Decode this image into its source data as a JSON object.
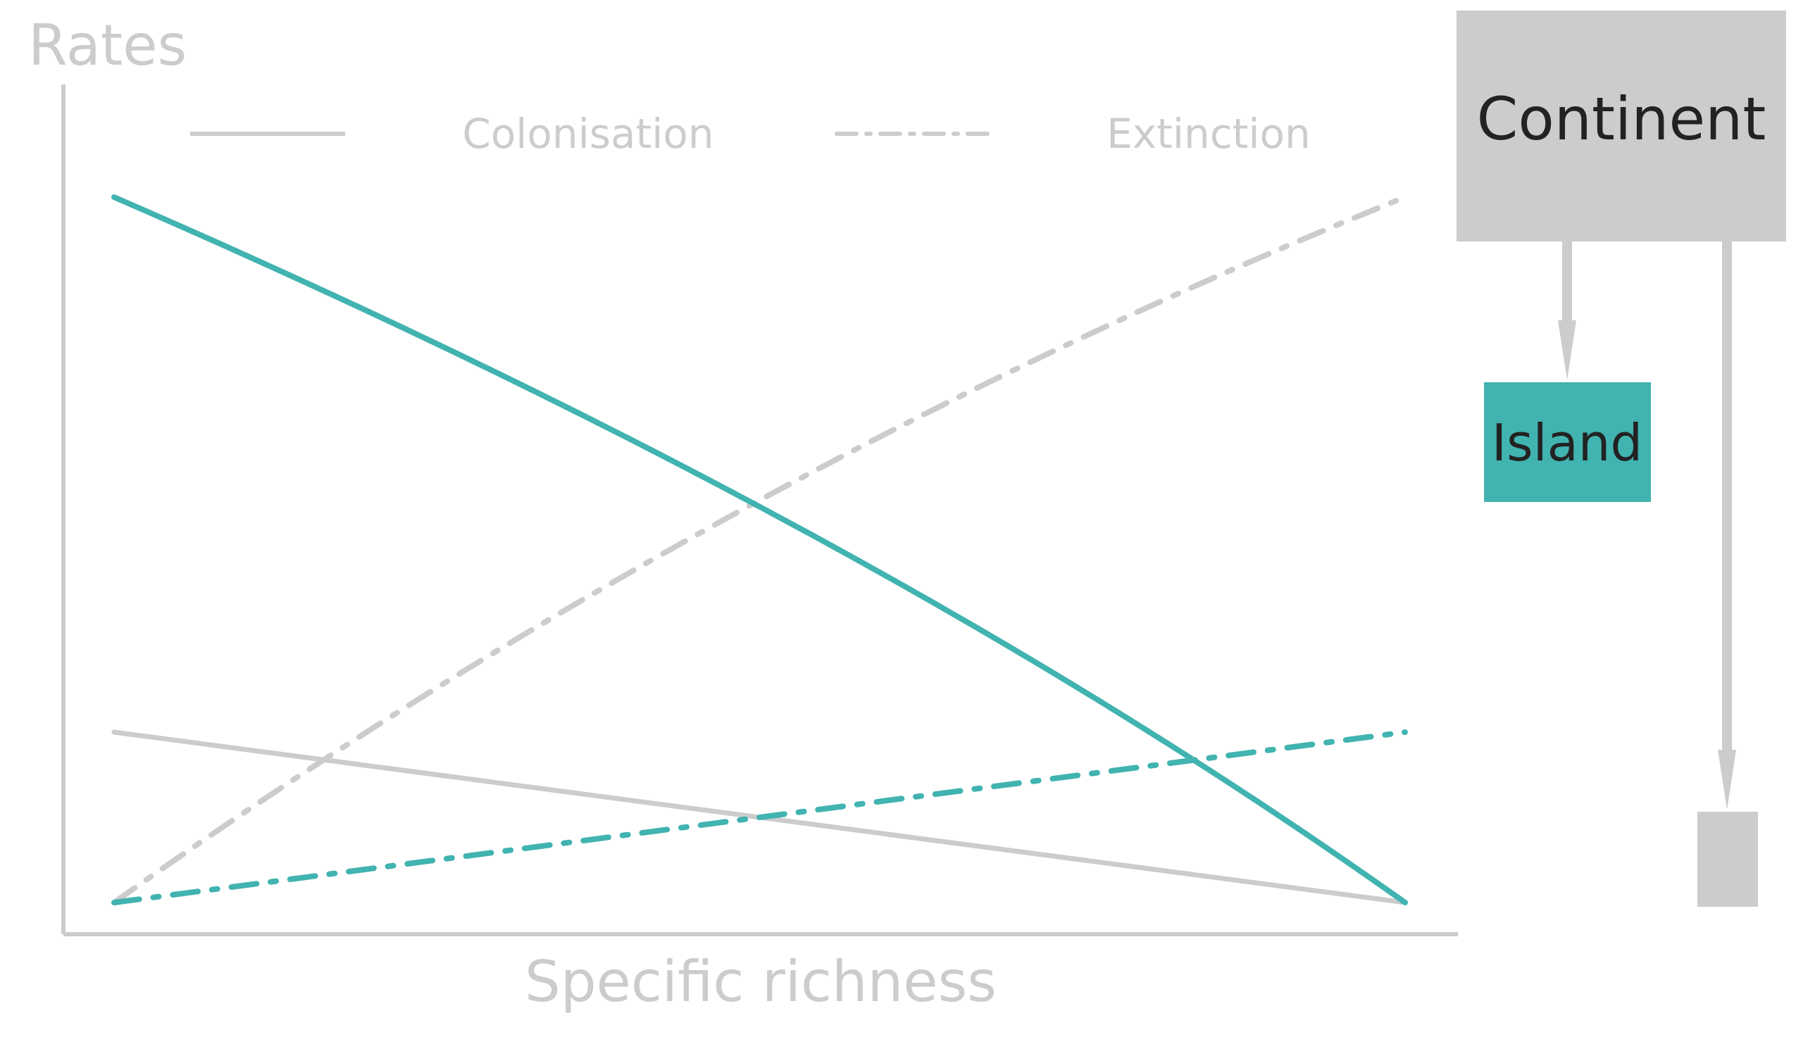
{
  "axes": {
    "y_title": "Rates",
    "x_title": "Specific richness"
  },
  "legend": {
    "solid_label": "Colonisation",
    "dashdot_label": "Extinction"
  },
  "boxes": {
    "continent": "Continent",
    "island": "Island",
    "small_island": ""
  },
  "colors": {
    "teal": "#41b3b0",
    "grey": "#cccccc",
    "text_dark": "#222222"
  }
}
